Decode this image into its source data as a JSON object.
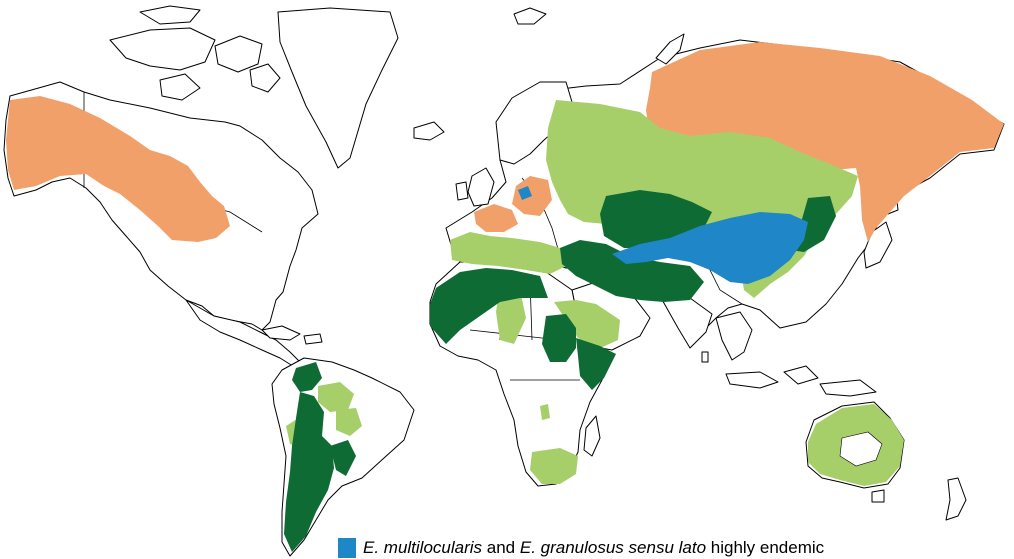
{
  "map": {
    "colors": {
      "em_eg_high": "#1f86c8",
      "em_present": "#f2a06a",
      "eg_high": "#0f6b34",
      "eg_present": "#a6cf6a"
    }
  },
  "legend": {
    "species_1": "E. multilocularis",
    "conjunction": " and ",
    "species_2": "E. granulosus sensu lato",
    "suffix": " highly endemic"
  }
}
